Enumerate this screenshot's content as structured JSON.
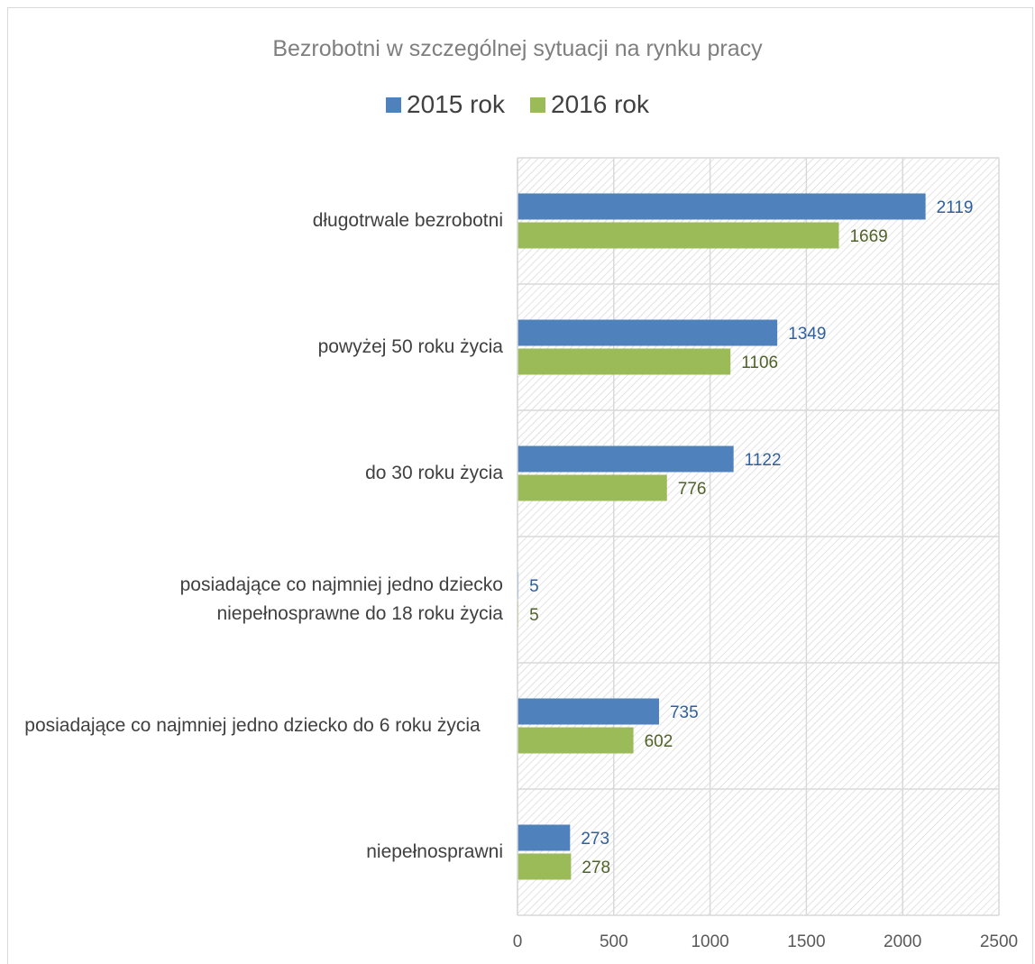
{
  "chart_data": {
    "type": "bar",
    "orientation": "horizontal",
    "title": "Bezrobotni w szczególnej sytuacji na rynku pracy",
    "categories": [
      "długotrwale bezrobotni",
      "powyżej 50 roku życia",
      "do 30 roku życia",
      "posiadające co najmniej jedno dziecko niepełnosprawne do 18 roku życia",
      "posiadające co najmniej jedno dziecko do 6 roku życia",
      "niepełnosprawni"
    ],
    "series": [
      {
        "name": "2015 rok",
        "color": "#4f81bd",
        "label_color": "#2e5f9e",
        "values": [
          2119,
          1349,
          1122,
          5,
          735,
          273
        ]
      },
      {
        "name": "2016 rok",
        "color": "#9bbb59",
        "label_color": "#4f6228",
        "values": [
          1669,
          1106,
          776,
          5,
          602,
          278
        ]
      }
    ],
    "xlim": [
      0,
      2500
    ],
    "xticks": [
      "0",
      "500",
      "1000",
      "1500",
      "2000",
      "2500"
    ],
    "grid": true,
    "legend": "top-center",
    "xlabel": "",
    "ylabel": ""
  }
}
